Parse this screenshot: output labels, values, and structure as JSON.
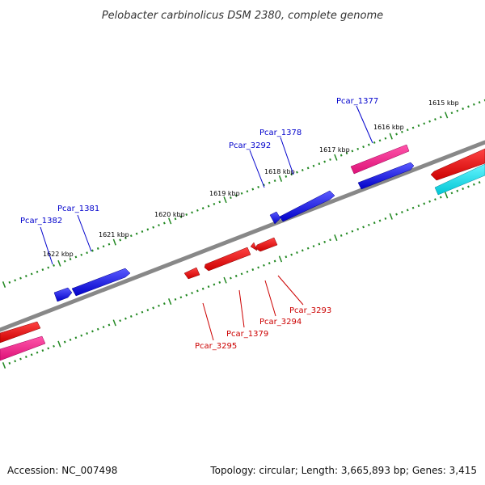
{
  "title": "Pelobacter carbinolicus DSM 2380, complete genome",
  "footer": {
    "accession": "Accession: NC_007498",
    "summary": "Topology: circular; Length: 3,665,893 bp; Genes: 3,415"
  },
  "colors": {
    "forward": "#0000dd",
    "reverse": "#dd0000",
    "pink": "#ee1188",
    "cyan": "#00d6e0",
    "backbone": "#808080",
    "ticks": "#228822"
  },
  "ticks": [
    "1615 kbp",
    "1616 kbp",
    "1617 kbp",
    "1618 kbp",
    "1619 kbp",
    "1620 kbp",
    "1621 kbp",
    "1622 kbp"
  ],
  "labels": {
    "pcar_1377": "Pcar_1377",
    "pcar_1378": "Pcar_1378",
    "pcar_3292": "Pcar_3292",
    "pcar_1381": "Pcar_1381",
    "pcar_1382": "Pcar_1382",
    "pcar_3293": "Pcar_3293",
    "pcar_3294": "Pcar_3294",
    "pcar_1379": "Pcar_1379",
    "pcar_3295": "Pcar_3295"
  }
}
